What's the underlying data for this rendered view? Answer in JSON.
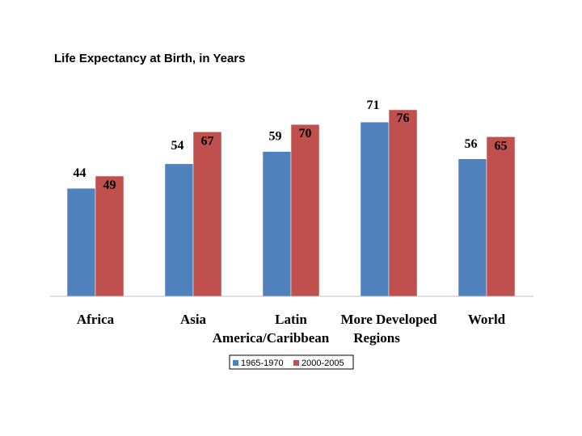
{
  "colors": {
    "series_1965": "#4f81bd",
    "series_2000": "#c0504d",
    "axis": "#bfbfbf"
  },
  "chart_data": {
    "type": "bar",
    "title": "Life Expectancy at Birth, in Years",
    "categories": [
      [
        "Africa"
      ],
      [
        "Asia"
      ],
      [
        "Latin",
        "America/Caribbean"
      ],
      [
        "More Developed",
        "Regions"
      ],
      [
        "World"
      ]
    ],
    "series": [
      {
        "name": "1965-1970",
        "values": [
          44,
          54,
          59,
          71,
          56
        ]
      },
      {
        "name": "2000-2005",
        "values": [
          49,
          67,
          70,
          76,
          65
        ]
      }
    ],
    "ylim": [
      0,
      100
    ],
    "grid": false,
    "legend_position": "bottom"
  }
}
